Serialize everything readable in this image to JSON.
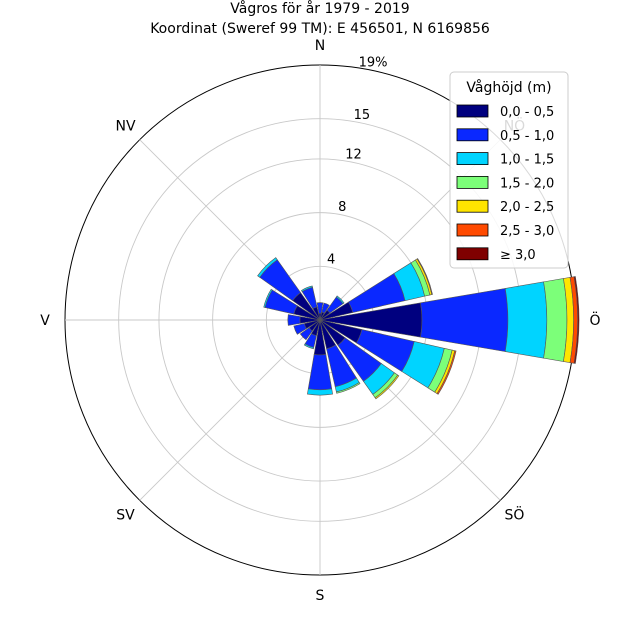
{
  "chart_data": {
    "type": "wind-rose",
    "title_line1": "Vågros för år 1979 - 2019",
    "title_line2": "Koordinat (Sweref 99 TM): E 456501, N 6169856",
    "direction_labels": [
      {
        "label": "N",
        "angle": 0
      },
      {
        "label": "NÖ",
        "angle": 45
      },
      {
        "label": "Ö",
        "angle": 90
      },
      {
        "label": "SÖ",
        "angle": 135
      },
      {
        "label": "S",
        "angle": 180
      },
      {
        "label": "SV",
        "angle": 225
      },
      {
        "label": "V",
        "angle": 270
      },
      {
        "label": "NV",
        "angle": 315
      }
    ],
    "radial_ticks": [
      {
        "value": 4,
        "label": "4"
      },
      {
        "value": 8,
        "label": "8"
      },
      {
        "value": 12,
        "label": "12"
      },
      {
        "value": 15,
        "label": "15"
      },
      {
        "value": 19,
        "label": "19%"
      }
    ],
    "r_max": 19,
    "sector_width_deg": 22.5,
    "legend_title": "Våghöjd (m)",
    "legend_placement": "top-right",
    "bins": [
      {
        "label": "0,0 - 0,5",
        "color": "#00007f"
      },
      {
        "label": "0,5 - 1,0",
        "color": "#0a28ff"
      },
      {
        "label": "1,0 - 1,5",
        "color": "#00d4ff"
      },
      {
        "label": "1,5 - 2,0",
        "color": "#7cff79"
      },
      {
        "label": "2,0 - 2,5",
        "color": "#ffe500"
      },
      {
        "label": "2,5 - 3,0",
        "color": "#ff4a00"
      },
      {
        "label": "≥ 3,0",
        "color": "#7f0000"
      }
    ],
    "sectors": [
      {
        "direction": 0,
        "values": [
          0.5,
          0.8,
          0,
          0,
          0,
          0,
          0
        ]
      },
      {
        "direction": 22.5,
        "values": [
          0.6,
          0.7,
          0,
          0,
          0,
          0,
          0
        ]
      },
      {
        "direction": 45,
        "values": [
          0.9,
          1.2,
          0.1,
          0,
          0,
          0,
          0
        ]
      },
      {
        "direction": 67.5,
        "values": [
          2.5,
          4.0,
          1.5,
          0.4,
          0.15,
          0.05,
          0
        ]
      },
      {
        "direction": 90,
        "values": [
          7.6,
          6.4,
          2.9,
          1.5,
          0.5,
          0.3,
          0.1
        ]
      },
      {
        "direction": 112.5,
        "values": [
          3.2,
          4.0,
          2.3,
          0.6,
          0.2,
          0.1,
          0
        ]
      },
      {
        "direction": 135,
        "values": [
          2.3,
          3.3,
          1.2,
          0.3,
          0.1,
          0,
          0
        ]
      },
      {
        "direction": 157.5,
        "values": [
          2.2,
          2.9,
          0.4,
          0.1,
          0,
          0,
          0
        ]
      },
      {
        "direction": 180,
        "values": [
          2.6,
          2.6,
          0.4,
          0,
          0,
          0,
          0
        ]
      },
      {
        "direction": 202.5,
        "values": [
          1.2,
          0.9,
          0.1,
          0,
          0,
          0,
          0
        ]
      },
      {
        "direction": 225,
        "values": [
          1.0,
          0.8,
          0,
          0,
          0,
          0,
          0
        ]
      },
      {
        "direction": 247.5,
        "values": [
          1.2,
          0.8,
          0,
          0,
          0,
          0,
          0
        ]
      },
      {
        "direction": 270,
        "values": [
          1.5,
          0.9,
          0,
          0,
          0,
          0,
          0
        ]
      },
      {
        "direction": 292.5,
        "values": [
          2.0,
          2.2,
          0.1,
          0,
          0,
          0,
          0
        ]
      },
      {
        "direction": 315,
        "values": [
          2.5,
          3.0,
          0.2,
          0,
          0,
          0,
          0
        ]
      },
      {
        "direction": 337.5,
        "values": [
          1.0,
          1.5,
          0.1,
          0,
          0,
          0,
          0
        ]
      }
    ]
  }
}
